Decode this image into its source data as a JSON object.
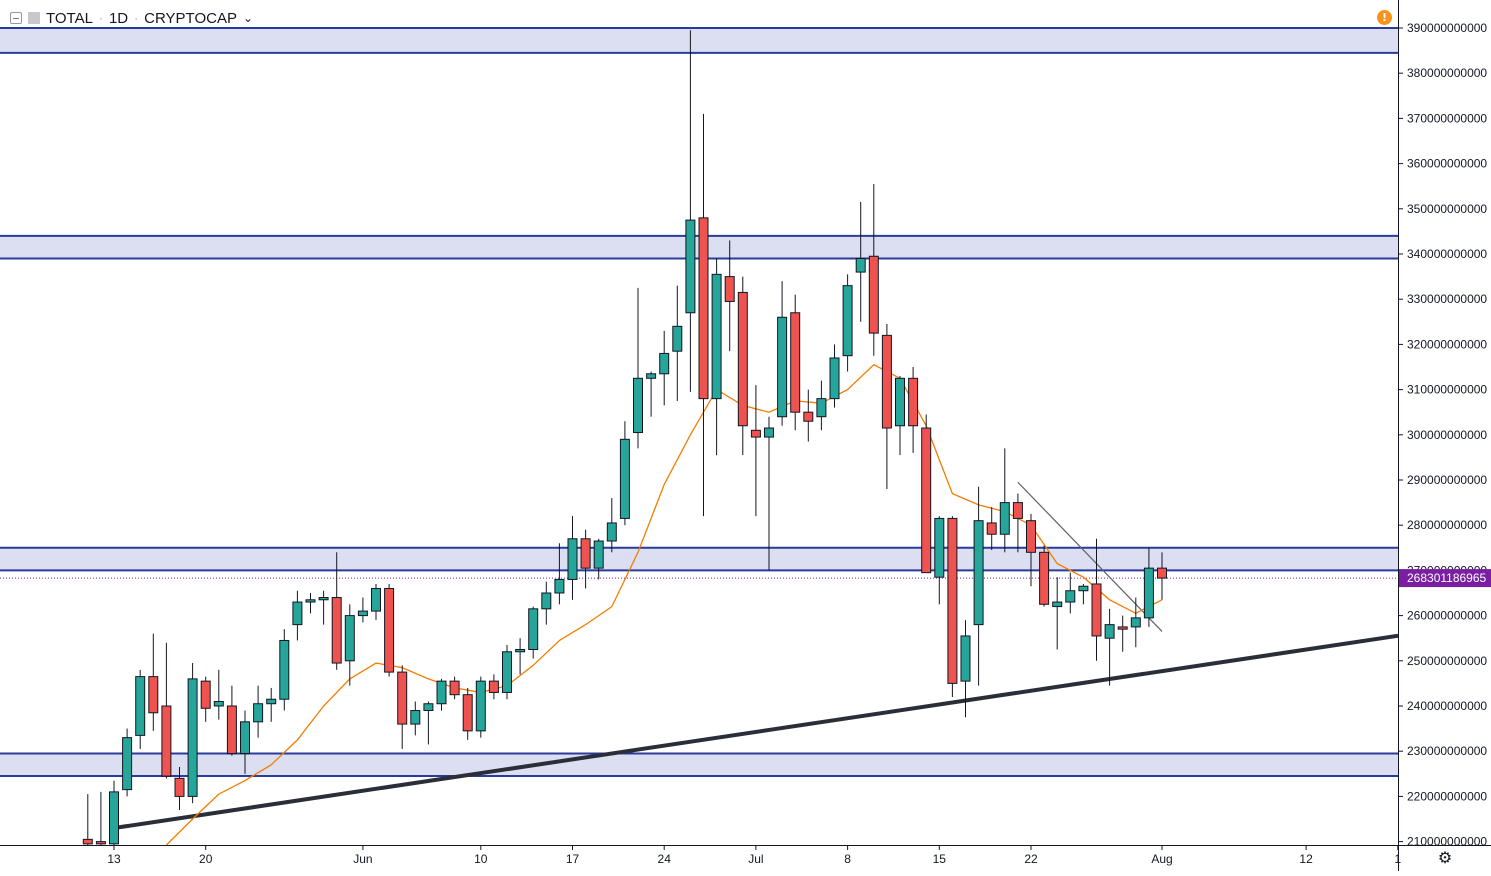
{
  "header": {
    "symbol": "TOTAL",
    "interval": "1D",
    "exchange": "CRYPTOCAP",
    "separator": "·"
  },
  "icons": {
    "collapse": "collapse-icon",
    "alert": "alert-icon",
    "settings": "settings-gear-icon",
    "chevron": "chevron-down-icon"
  },
  "colors": {
    "up": "#26a69a",
    "down": "#ef5350",
    "wick": "#131722",
    "zone_fill": "#d8dcf0",
    "zone_line": "#2a3b9b",
    "ma_line": "#f57c00",
    "trendline": "#2a2e39",
    "price_label_bg": "#7b1fa2",
    "alert": "#f7931a"
  },
  "price_label": "268301186965",
  "chart_data": {
    "type": "candlestick",
    "y_axis": {
      "min": 210000000000,
      "max": 393000000000,
      "ticks": [
        "210000000000",
        "220000000000",
        "230000000000",
        "240000000000",
        "250000000000",
        "260000000000",
        "270000000000",
        "280000000000",
        "290000000000",
        "300000000000",
        "310000000000",
        "320000000000",
        "330000000000",
        "340000000000",
        "350000000000",
        "360000000000",
        "370000000000",
        "380000000000",
        "390000000000"
      ]
    },
    "x_axis": {
      "start": "2019-05-07",
      "end": "2019-09-01",
      "ticks": [
        {
          "date": "2019-05-13",
          "label": "13"
        },
        {
          "date": "2019-05-20",
          "label": "20"
        },
        {
          "date": "2019-06-01",
          "label": "Jun"
        },
        {
          "date": "2019-06-10",
          "label": "10"
        },
        {
          "date": "2019-06-17",
          "label": "17"
        },
        {
          "date": "2019-06-24",
          "label": "24"
        },
        {
          "date": "2019-07-01",
          "label": "Jul"
        },
        {
          "date": "2019-07-08",
          "label": "8"
        },
        {
          "date": "2019-07-15",
          "label": "15"
        },
        {
          "date": "2019-07-22",
          "label": "22"
        },
        {
          "date": "2019-08-01",
          "label": "Aug"
        },
        {
          "date": "2019-08-12",
          "label": "12"
        },
        {
          "date": "2019-08-19",
          "label": "1"
        }
      ]
    },
    "candles": [
      {
        "d": "2019-05-11",
        "o": 210.5,
        "h": 220.5,
        "l": 209.0,
        "c": 209.5
      },
      {
        "d": "2019-05-12",
        "o": 210.0,
        "h": 221.0,
        "l": 207.0,
        "c": 209.5
      },
      {
        "d": "2019-05-13",
        "o": 209.5,
        "h": 223.5,
        "l": 208.5,
        "c": 221.0
      },
      {
        "d": "2019-05-14",
        "o": 221.5,
        "h": 235.0,
        "l": 220.0,
        "c": 233.0
      },
      {
        "d": "2019-05-15",
        "o": 233.5,
        "h": 248.0,
        "l": 230.5,
        "c": 246.5
      },
      {
        "d": "2019-05-16",
        "o": 246.5,
        "h": 256.0,
        "l": 234.5,
        "c": 238.5
      },
      {
        "d": "2019-05-17",
        "o": 240.0,
        "h": 254.0,
        "l": 224.0,
        "c": 224.5
      },
      {
        "d": "2019-05-18",
        "o": 224.0,
        "h": 226.5,
        "l": 217.0,
        "c": 220.0
      },
      {
        "d": "2019-05-19",
        "o": 220.0,
        "h": 249.5,
        "l": 218.5,
        "c": 246.0
      },
      {
        "d": "2019-05-20",
        "o": 245.5,
        "h": 246.5,
        "l": 236.5,
        "c": 239.5
      },
      {
        "d": "2019-05-21",
        "o": 240.0,
        "h": 248.0,
        "l": 237.0,
        "c": 241.0
      },
      {
        "d": "2019-05-22",
        "o": 240.0,
        "h": 244.5,
        "l": 229.0,
        "c": 229.5
      },
      {
        "d": "2019-05-23",
        "o": 229.5,
        "h": 239.0,
        "l": 225.0,
        "c": 236.5
      },
      {
        "d": "2019-05-24",
        "o": 236.5,
        "h": 244.5,
        "l": 233.0,
        "c": 240.5
      },
      {
        "d": "2019-05-25",
        "o": 240.5,
        "h": 244.0,
        "l": 236.5,
        "c": 241.5
      },
      {
        "d": "2019-05-26",
        "o": 241.5,
        "h": 257.0,
        "l": 239.0,
        "c": 254.5
      },
      {
        "d": "2019-05-27",
        "o": 258.0,
        "h": 265.5,
        "l": 254.5,
        "c": 263.0
      },
      {
        "d": "2019-05-28",
        "o": 263.0,
        "h": 265.0,
        "l": 260.5,
        "c": 263.5
      },
      {
        "d": "2019-05-29",
        "o": 263.5,
        "h": 265.5,
        "l": 258.0,
        "c": 264.0
      },
      {
        "d": "2019-05-30",
        "o": 264.0,
        "h": 274.0,
        "l": 248.0,
        "c": 249.5
      },
      {
        "d": "2019-05-31",
        "o": 250.0,
        "h": 262.5,
        "l": 244.5,
        "c": 260.0
      },
      {
        "d": "2019-06-01",
        "o": 260.0,
        "h": 264.0,
        "l": 258.5,
        "c": 261.0
      },
      {
        "d": "2019-06-02",
        "o": 261.0,
        "h": 267.0,
        "l": 259.0,
        "c": 266.0
      },
      {
        "d": "2019-06-03",
        "o": 266.0,
        "h": 267.0,
        "l": 246.5,
        "c": 247.5
      },
      {
        "d": "2019-06-04",
        "o": 247.5,
        "h": 249.0,
        "l": 230.5,
        "c": 236.0
      },
      {
        "d": "2019-06-05",
        "o": 236.0,
        "h": 241.0,
        "l": 233.5,
        "c": 239.0
      },
      {
        "d": "2019-06-06",
        "o": 239.0,
        "h": 241.0,
        "l": 231.5,
        "c": 240.5
      },
      {
        "d": "2019-06-07",
        "o": 240.5,
        "h": 246.0,
        "l": 239.0,
        "c": 245.5
      },
      {
        "d": "2019-06-08",
        "o": 245.5,
        "h": 246.5,
        "l": 241.5,
        "c": 242.5
      },
      {
        "d": "2019-06-09",
        "o": 242.5,
        "h": 244.0,
        "l": 232.5,
        "c": 234.5
      },
      {
        "d": "2019-06-10",
        "o": 234.5,
        "h": 246.5,
        "l": 233.0,
        "c": 245.5
      },
      {
        "d": "2019-06-11",
        "o": 245.5,
        "h": 247.0,
        "l": 241.5,
        "c": 243.0
      },
      {
        "d": "2019-06-12",
        "o": 243.0,
        "h": 253.5,
        "l": 241.5,
        "c": 252.0
      },
      {
        "d": "2019-06-13",
        "o": 252.0,
        "h": 255.0,
        "l": 247.0,
        "c": 252.5
      },
      {
        "d": "2019-06-14",
        "o": 252.5,
        "h": 262.0,
        "l": 250.5,
        "c": 261.5
      },
      {
        "d": "2019-06-15",
        "o": 261.5,
        "h": 267.5,
        "l": 258.0,
        "c": 265.0
      },
      {
        "d": "2019-06-16",
        "o": 265.0,
        "h": 276.0,
        "l": 262.5,
        "c": 268.0
      },
      {
        "d": "2019-06-17",
        "o": 268.0,
        "h": 282.0,
        "l": 263.5,
        "c": 277.0
      },
      {
        "d": "2019-06-18",
        "o": 277.0,
        "h": 279.0,
        "l": 266.0,
        "c": 270.5
      },
      {
        "d": "2019-06-19",
        "o": 270.5,
        "h": 277.0,
        "l": 268.0,
        "c": 276.5
      },
      {
        "d": "2019-06-20",
        "o": 276.5,
        "h": 286.0,
        "l": 274.0,
        "c": 280.5
      },
      {
        "d": "2019-06-21",
        "o": 281.5,
        "h": 303.0,
        "l": 280.0,
        "c": 299.0
      },
      {
        "d": "2019-06-22",
        "o": 300.5,
        "h": 332.5,
        "l": 297.0,
        "c": 312.5
      },
      {
        "d": "2019-06-23",
        "o": 312.5,
        "h": 314.0,
        "l": 304.0,
        "c": 313.5
      },
      {
        "d": "2019-06-24",
        "o": 313.5,
        "h": 323.0,
        "l": 306.5,
        "c": 318.0
      },
      {
        "d": "2019-06-25",
        "o": 318.5,
        "h": 333.0,
        "l": 307.5,
        "c": 324.0
      },
      {
        "d": "2019-06-26",
        "o": 327.0,
        "h": 389.5,
        "l": 309.5,
        "c": 347.5
      },
      {
        "d": "2019-06-27",
        "o": 348.0,
        "h": 371.0,
        "l": 282.0,
        "c": 308.0
      },
      {
        "d": "2019-06-28",
        "o": 308.0,
        "h": 339.0,
        "l": 295.5,
        "c": 335.5
      },
      {
        "d": "2019-06-29",
        "o": 335.0,
        "h": 343.0,
        "l": 318.5,
        "c": 329.5
      },
      {
        "d": "2019-06-30",
        "o": 331.5,
        "h": 335.0,
        "l": 295.5,
        "c": 302.0
      },
      {
        "d": "2019-07-01",
        "o": 301.0,
        "h": 311.0,
        "l": 282.0,
        "c": 299.5
      },
      {
        "d": "2019-07-02",
        "o": 299.5,
        "h": 304.0,
        "l": 270.0,
        "c": 301.5
      },
      {
        "d": "2019-07-03",
        "o": 304.0,
        "h": 334.0,
        "l": 302.0,
        "c": 326.0
      },
      {
        "d": "2019-07-04",
        "o": 327.0,
        "h": 331.0,
        "l": 301.0,
        "c": 305.0
      },
      {
        "d": "2019-07-05",
        "o": 305.0,
        "h": 310.0,
        "l": 298.5,
        "c": 303.0
      },
      {
        "d": "2019-07-06",
        "o": 304.0,
        "h": 312.0,
        "l": 301.0,
        "c": 308.0
      },
      {
        "d": "2019-07-07",
        "o": 308.0,
        "h": 320.0,
        "l": 306.0,
        "c": 317.0
      },
      {
        "d": "2019-07-08",
        "o": 317.5,
        "h": 335.5,
        "l": 314.0,
        "c": 333.0
      },
      {
        "d": "2019-07-09",
        "o": 336.0,
        "h": 351.5,
        "l": 325.0,
        "c": 339.0
      },
      {
        "d": "2019-07-10",
        "o": 339.5,
        "h": 355.5,
        "l": 317.5,
        "c": 322.5
      },
      {
        "d": "2019-07-11",
        "o": 322.0,
        "h": 324.5,
        "l": 288.0,
        "c": 301.5
      },
      {
        "d": "2019-07-12",
        "o": 302.0,
        "h": 313.0,
        "l": 295.5,
        "c": 312.5
      },
      {
        "d": "2019-07-13",
        "o": 312.5,
        "h": 315.0,
        "l": 296.0,
        "c": 302.0
      },
      {
        "d": "2019-07-14",
        "o": 301.5,
        "h": 304.5,
        "l": 283.0,
        "c": 269.5
      },
      {
        "d": "2019-07-15",
        "o": 268.5,
        "h": 282.0,
        "l": 262.5,
        "c": 281.5
      },
      {
        "d": "2019-07-16",
        "o": 281.5,
        "h": 282.0,
        "l": 242.0,
        "c": 245.0
      },
      {
        "d": "2019-07-17",
        "o": 245.5,
        "h": 259.0,
        "l": 237.5,
        "c": 255.5
      },
      {
        "d": "2019-07-18",
        "o": 258.0,
        "h": 288.5,
        "l": 244.5,
        "c": 281.0
      },
      {
        "d": "2019-07-19",
        "o": 280.5,
        "h": 284.0,
        "l": 274.5,
        "c": 278.0
      },
      {
        "d": "2019-07-20",
        "o": 278.0,
        "h": 297.0,
        "l": 274.0,
        "c": 285.0
      },
      {
        "d": "2019-07-21",
        "o": 285.0,
        "h": 287.0,
        "l": 274.0,
        "c": 281.5
      },
      {
        "d": "2019-07-22",
        "o": 281.0,
        "h": 282.5,
        "l": 266.5,
        "c": 274.0
      },
      {
        "d": "2019-07-23",
        "o": 274.0,
        "h": 275.5,
        "l": 262.0,
        "c": 262.5
      },
      {
        "d": "2019-07-24",
        "o": 262.0,
        "h": 268.5,
        "l": 252.5,
        "c": 263.0
      },
      {
        "d": "2019-07-25",
        "o": 263.0,
        "h": 269.5,
        "l": 260.5,
        "c": 265.5
      },
      {
        "d": "2019-07-26",
        "o": 265.5,
        "h": 267.0,
        "l": 262.5,
        "c": 266.5
      },
      {
        "d": "2019-07-27",
        "o": 267.0,
        "h": 277.0,
        "l": 250.0,
        "c": 255.5
      },
      {
        "d": "2019-07-28",
        "o": 255.0,
        "h": 261.5,
        "l": 244.5,
        "c": 258.0
      },
      {
        "d": "2019-07-29",
        "o": 257.5,
        "h": 260.0,
        "l": 252.0,
        "c": 257.0
      },
      {
        "d": "2019-07-30",
        "o": 257.5,
        "h": 264.0,
        "l": 253.0,
        "c": 259.5
      },
      {
        "d": "2019-07-31",
        "o": 259.5,
        "h": 275.0,
        "l": 257.5,
        "c": 270.5
      },
      {
        "d": "2019-08-01",
        "o": 270.5,
        "h": 274.0,
        "l": 263.5,
        "c": 268.3
      }
    ],
    "ma": [
      {
        "d": "2019-05-17",
        "v": 209.0
      },
      {
        "d": "2019-05-19",
        "v": 215.0
      },
      {
        "d": "2019-05-21",
        "v": 220.5
      },
      {
        "d": "2019-05-23",
        "v": 223.5
      },
      {
        "d": "2019-05-25",
        "v": 227.0
      },
      {
        "d": "2019-05-27",
        "v": 232.5
      },
      {
        "d": "2019-05-29",
        "v": 240.0
      },
      {
        "d": "2019-05-31",
        "v": 246.0
      },
      {
        "d": "2019-06-02",
        "v": 249.5
      },
      {
        "d": "2019-06-04",
        "v": 248.5
      },
      {
        "d": "2019-06-06",
        "v": 246.0
      },
      {
        "d": "2019-06-08",
        "v": 244.0
      },
      {
        "d": "2019-06-10",
        "v": 243.0
      },
      {
        "d": "2019-06-12",
        "v": 244.5
      },
      {
        "d": "2019-06-14",
        "v": 249.0
      },
      {
        "d": "2019-06-16",
        "v": 254.5
      },
      {
        "d": "2019-06-18",
        "v": 258.0
      },
      {
        "d": "2019-06-20",
        "v": 262.0
      },
      {
        "d": "2019-06-22",
        "v": 274.0
      },
      {
        "d": "2019-06-24",
        "v": 289.0
      },
      {
        "d": "2019-06-26",
        "v": 300.0
      },
      {
        "d": "2019-06-28",
        "v": 310.0
      },
      {
        "d": "2019-06-30",
        "v": 306.5
      },
      {
        "d": "2019-07-02",
        "v": 305.0
      },
      {
        "d": "2019-07-04",
        "v": 307.5
      },
      {
        "d": "2019-07-06",
        "v": 307.0
      },
      {
        "d": "2019-07-08",
        "v": 310.0
      },
      {
        "d": "2019-07-10",
        "v": 315.5
      },
      {
        "d": "2019-07-12",
        "v": 312.5
      },
      {
        "d": "2019-07-14",
        "v": 302.0
      },
      {
        "d": "2019-07-16",
        "v": 287.0
      },
      {
        "d": "2019-07-18",
        "v": 284.5
      },
      {
        "d": "2019-07-20",
        "v": 283.0
      },
      {
        "d": "2019-07-22",
        "v": 280.0
      },
      {
        "d": "2019-07-24",
        "v": 271.5
      },
      {
        "d": "2019-07-26",
        "v": 268.5
      },
      {
        "d": "2019-07-28",
        "v": 263.5
      },
      {
        "d": "2019-07-30",
        "v": 260.5
      },
      {
        "d": "2019-08-01",
        "v": 263.5
      }
    ],
    "zones": [
      {
        "top": 390.0,
        "bottom": 384.5
      },
      {
        "top": 344.0,
        "bottom": 339.0
      },
      {
        "top": 275.0,
        "bottom": 270.0
      },
      {
        "top": 229.5,
        "bottom": 224.5
      }
    ],
    "trendline": {
      "from": {
        "d": "2019-05-13",
        "v": 213.0
      },
      "to": {
        "d": "2019-08-27",
        "v": 259.0
      }
    },
    "downtrend": {
      "from": {
        "d": "2019-07-21",
        "v": 289.5
      },
      "to": {
        "d": "2019-08-01",
        "v": 256.5
      }
    },
    "last_price_line": 268.3,
    "value_units": "billion"
  }
}
